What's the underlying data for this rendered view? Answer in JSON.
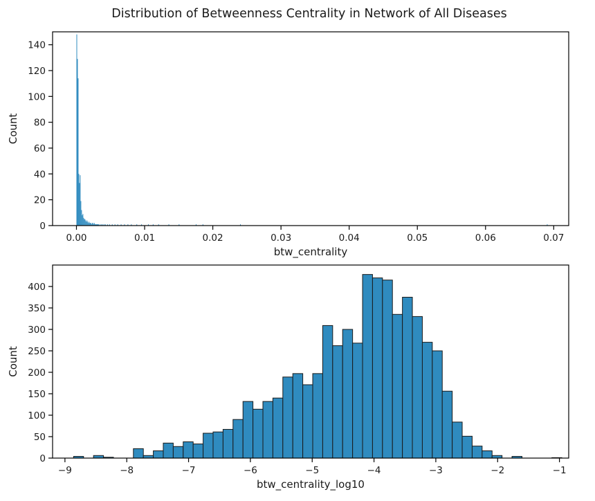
{
  "figure_title": "Distribution of Betweenness Centrality in Network of All Diseases",
  "colors": {
    "bar_fill": "#2f8bbf",
    "bar_edge": "#1a1a1a",
    "axes": "#000000"
  },
  "chart_data": [
    {
      "type": "bar",
      "xlabel": "btw_centrality",
      "ylabel": "Count",
      "xlim": [
        -0.0035,
        0.0722
      ],
      "ylim": [
        0,
        150
      ],
      "xticks": [
        0.0,
        0.01,
        0.02,
        0.03,
        0.04,
        0.05,
        0.06,
        0.07
      ],
      "xtick_labels": [
        "0.00",
        "0.01",
        "0.02",
        "0.03",
        "0.04",
        "0.05",
        "0.06",
        "0.07"
      ],
      "yticks": [
        0,
        20,
        40,
        60,
        80,
        100,
        120,
        140
      ],
      "ytick_labels": [
        "0",
        "20",
        "40",
        "60",
        "80",
        "100",
        "120",
        "140"
      ],
      "bin_width": 0.0001,
      "bin_starts": [
        0.0,
        0.0001,
        0.0002,
        0.0003,
        0.0004,
        0.0005,
        0.0006,
        0.0007,
        0.0008,
        0.0009,
        0.001,
        0.0011,
        0.0012,
        0.0013,
        0.0014,
        0.0015,
        0.0016,
        0.0017,
        0.0018,
        0.0019,
        0.002,
        0.0021,
        0.0022,
        0.0023,
        0.0024,
        0.0025,
        0.0026,
        0.0027,
        0.0028,
        0.0029,
        0.003,
        0.0031,
        0.0032,
        0.0034,
        0.0036,
        0.0038,
        0.004,
        0.0042,
        0.0045,
        0.0048,
        0.0052,
        0.0056,
        0.006,
        0.0065,
        0.007,
        0.0075,
        0.008,
        0.0088,
        0.0095,
        0.0105,
        0.0112,
        0.012,
        0.0135,
        0.015,
        0.0175,
        0.0185,
        0.024,
        0.069
      ],
      "values": [
        148,
        129,
        114,
        40,
        33,
        39,
        19,
        12,
        8,
        9,
        6,
        5,
        5,
        4,
        3,
        4,
        3,
        2,
        3,
        2,
        2,
        2,
        1,
        2,
        2,
        1,
        2,
        1,
        1,
        1,
        1,
        1,
        1,
        1,
        1,
        1,
        1,
        1,
        1,
        1,
        1,
        1,
        1,
        1,
        1,
        1,
        1,
        1,
        1,
        1,
        1,
        1,
        1,
        1,
        1,
        1,
        1,
        1
      ]
    },
    {
      "type": "bar",
      "xlabel": "btw_centrality_log10",
      "ylabel": "Count",
      "xlim": [
        -9.2,
        -0.85
      ],
      "ylim": [
        0,
        450
      ],
      "xticks": [
        -9,
        -8,
        -7,
        -6,
        -5,
        -4,
        -3,
        -2,
        -1
      ],
      "xtick_labels": [
        "−9",
        "−8",
        "−7",
        "−6",
        "−5",
        "−4",
        "−3",
        "−2",
        "−1"
      ],
      "yticks": [
        0,
        50,
        100,
        150,
        200,
        250,
        300,
        350,
        400
      ],
      "ytick_labels": [
        "0",
        "50",
        "100",
        "150",
        "200",
        "250",
        "300",
        "350",
        "400"
      ],
      "bin_start": -8.86,
      "bin_width": 0.1612,
      "values": [
        4,
        0,
        6,
        2,
        0,
        0,
        22,
        6,
        17,
        35,
        27,
        38,
        33,
        58,
        61,
        67,
        90,
        132,
        114,
        132,
        140,
        189,
        197,
        171,
        197,
        309,
        262,
        300,
        268,
        428,
        420,
        415,
        335,
        375,
        330,
        270,
        250,
        156,
        84,
        51,
        28,
        17,
        6,
        0,
        4,
        0,
        0,
        0,
        1
      ]
    }
  ]
}
